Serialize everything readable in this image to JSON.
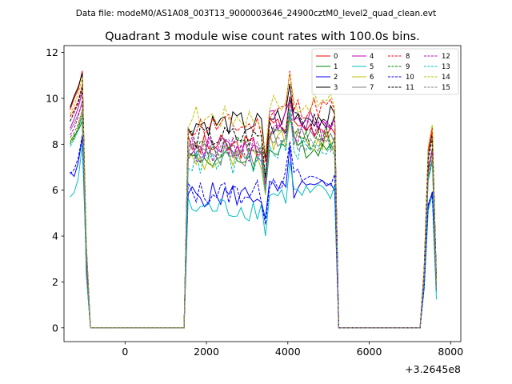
{
  "chart_data": {
    "type": "line",
    "suptitle": "Data file: modeM0/AS1A08_003T13_9000003646_24900cztM0_level2_quad_clean.evt",
    "title": "Quadrant 3 module wise count rates with 100.0s bins.",
    "xlabel": "",
    "ylabel": "",
    "x_offset_label": "+3.2645e8",
    "xlim": [
      -1500,
      8250
    ],
    "ylim": [
      -0.6,
      12.3
    ],
    "x_ticks": [
      0,
      2000,
      4000,
      6000,
      8000
    ],
    "x_tick_labels": [
      "0",
      "2000",
      "4000",
      "6000",
      "8000"
    ],
    "y_ticks": [
      0,
      2,
      4,
      6,
      8,
      10,
      12
    ],
    "y_tick_labels": [
      "0",
      "2",
      "4",
      "6",
      "8",
      "10",
      "12"
    ],
    "legend": {
      "placement": "top-right",
      "columns": 4
    },
    "series": [
      {
        "name": "0",
        "color": "#ff0000",
        "dashed": false,
        "level1": [
          9.5,
          10.0,
          10.4,
          11.2
        ],
        "level2": 7.9,
        "level3": 8.8,
        "level4": 8.5
      },
      {
        "name": "1",
        "color": "#008000",
        "dashed": false,
        "level1": [
          8.1,
          8.4,
          8.6,
          9.0
        ],
        "level2": 7.4,
        "level3": 7.9,
        "level4": 7.4
      },
      {
        "name": "2",
        "color": "#0000ff",
        "dashed": false,
        "level1": [
          6.8,
          6.6,
          7.2,
          8.3
        ],
        "level2": 5.8,
        "level3": 6.0,
        "level4": 6.0
      },
      {
        "name": "3",
        "color": "#000000",
        "dashed": false,
        "level1": [
          9.6,
          10.1,
          10.5,
          11.1
        ],
        "level2": 8.9,
        "level3": 9.2,
        "level4": 8.5
      },
      {
        "name": "4",
        "color": "#bf00bf",
        "dashed": false,
        "level1": [
          8.7,
          9.1,
          9.6,
          10.3
        ],
        "level2": 7.9,
        "level3": 9.0,
        "level4": 7.8
      },
      {
        "name": "5",
        "color": "#00bfbf",
        "dashed": false,
        "level1": [
          5.7,
          5.9,
          6.5,
          8.0
        ],
        "level2": 5.2,
        "level3": 5.8,
        "level4": 5.7
      },
      {
        "name": "6",
        "color": "#bfbf00",
        "dashed": false,
        "level1": [
          8.3,
          8.2,
          8.8,
          9.5
        ],
        "level2": 7.3,
        "level3": 8.1,
        "level4": 7.6
      },
      {
        "name": "7",
        "color": "#808080",
        "dashed": false,
        "level1": [
          8.6,
          8.9,
          9.3,
          9.8
        ],
        "level2": 7.6,
        "level3": 8.3,
        "level4": 7.6
      },
      {
        "name": "8",
        "color": "#ff0000",
        "dashed": true,
        "level1": [
          9.2,
          9.5,
          9.9,
          10.6
        ],
        "level2": 8.8,
        "level3": 9.6,
        "level4": 8.4
      },
      {
        "name": "9",
        "color": "#008000",
        "dashed": true,
        "level1": [
          8.0,
          8.3,
          8.7,
          9.3
        ],
        "level2": 7.8,
        "level3": 8.3,
        "level4": 7.5
      },
      {
        "name": "10",
        "color": "#0000ff",
        "dashed": true,
        "level1": [
          6.7,
          6.9,
          7.4,
          8.4
        ],
        "level2": 5.9,
        "level3": 6.5,
        "level4": 5.9
      },
      {
        "name": "11",
        "color": "#000000",
        "dashed": true,
        "level1": [
          9.0,
          9.4,
          9.8,
          10.5
        ],
        "level2": 8.3,
        "level3": 8.9,
        "level4": 8.3
      },
      {
        "name": "12",
        "color": "#bf00bf",
        "dashed": true,
        "level1": [
          8.4,
          8.7,
          9.2,
          9.9
        ],
        "level2": 7.8,
        "level3": 8.6,
        "level4": 7.7
      },
      {
        "name": "13",
        "color": "#00bfbf",
        "dashed": true,
        "level1": [
          7.9,
          8.2,
          8.6,
          9.2
        ],
        "level2": 7.2,
        "level3": 7.8,
        "level4": 7.2
      },
      {
        "name": "14",
        "color": "#bfbf00",
        "dashed": true,
        "level1": [
          9.3,
          9.7,
          10.2,
          10.9
        ],
        "level2": 9.2,
        "level3": 9.8,
        "level4": 8.8
      },
      {
        "name": "15",
        "color": "#808080",
        "dashed": true,
        "level1": [
          8.3,
          8.5,
          8.9,
          9.5
        ],
        "level2": 7.7,
        "level3": 8.1,
        "level4": 7.4
      }
    ],
    "segments": {
      "seg1_x": [
        -1350,
        -1250,
        -1150,
        -1050
      ],
      "seg1_zero_range": [
        -850,
        1450
      ],
      "seg2_range": [
        1550,
        3350
      ],
      "dip_x": 3450,
      "seg3_range": [
        3550,
        5150
      ],
      "seg3_peak_x": 4050,
      "seg3_zero_range": [
        5250,
        7250
      ],
      "seg4_x": [
        7350,
        7450,
        7550,
        7650
      ]
    }
  }
}
